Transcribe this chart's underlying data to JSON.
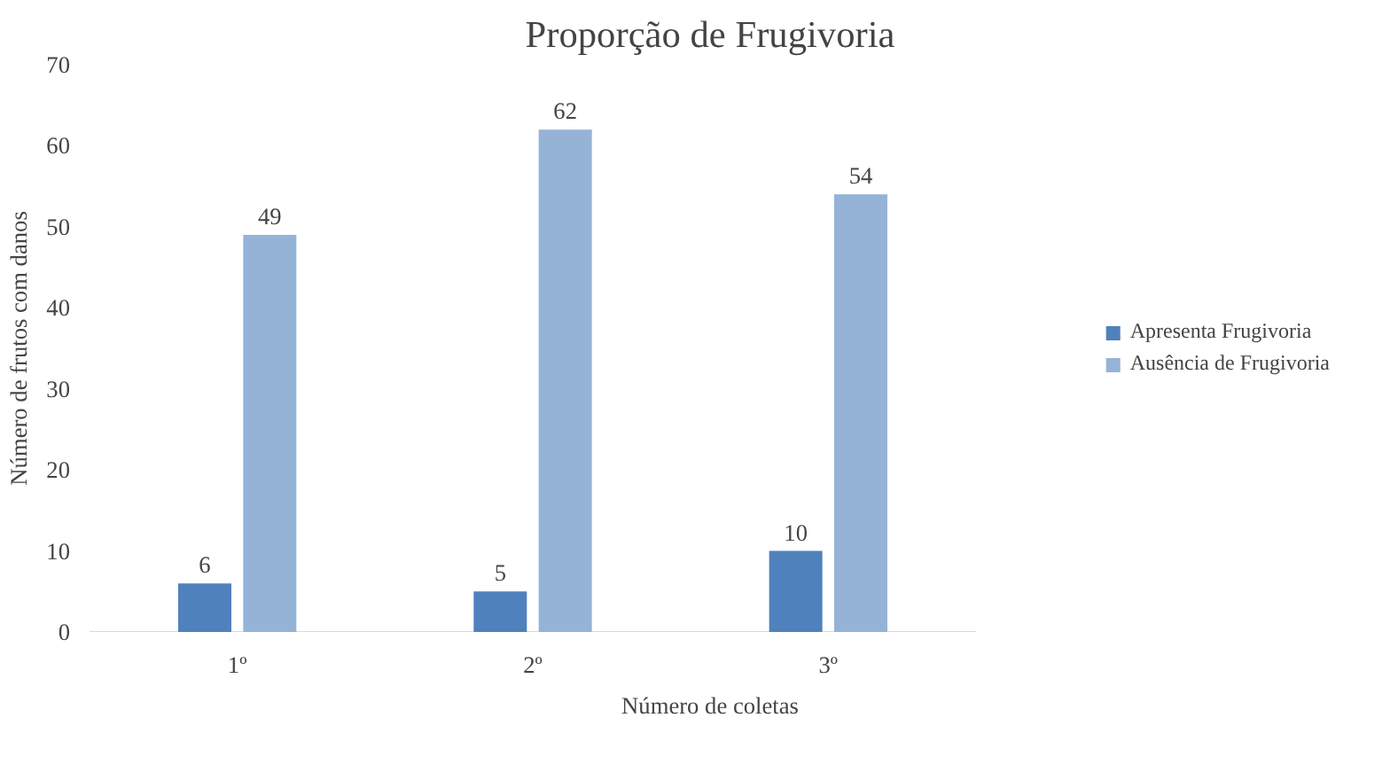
{
  "chart_data": {
    "type": "bar",
    "title": "Proporção de Frugivoria",
    "xlabel": "Número de coletas",
    "ylabel": "Número de frutos com danos",
    "categories": [
      "1º",
      "2º",
      "3º"
    ],
    "series": [
      {
        "name": "Apresenta Frugivoria",
        "color": "#4f81bd",
        "values": [
          6,
          5,
          10
        ]
      },
      {
        "name": "Ausência de Frugivoria",
        "color": "#95b3d7",
        "values": [
          49,
          62,
          54
        ]
      }
    ],
    "ylim": [
      0,
      70
    ],
    "yticks": [
      0,
      10,
      20,
      30,
      40,
      50,
      60,
      70
    ],
    "grid": false,
    "legend": "right",
    "data_labels": true
  }
}
